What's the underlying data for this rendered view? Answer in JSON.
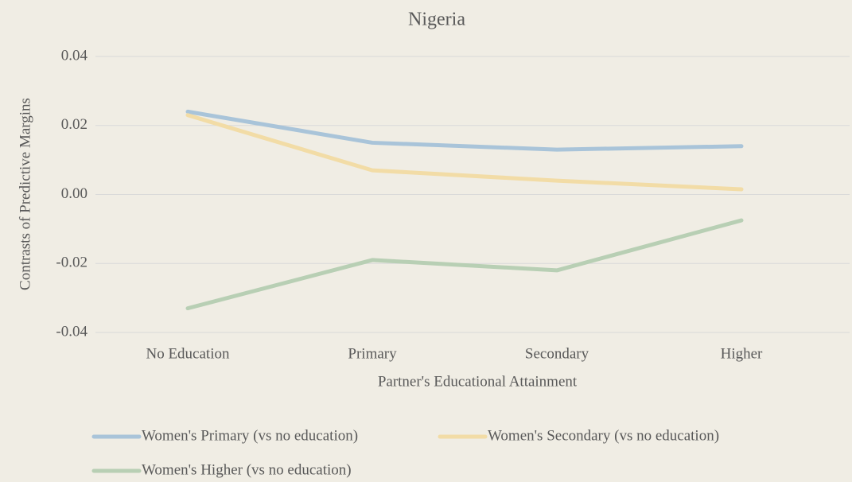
{
  "chart_data": {
    "type": "line",
    "title": "Nigeria",
    "x_label": "Partner's Educational Attainment",
    "y_label": "Contrasts of Predictive Margins",
    "categories": [
      "No Education",
      "Primary",
      "Secondary",
      "Higher"
    ],
    "series": [
      {
        "name": "Women's Primary (vs no education)",
        "color": "#a9c4d9",
        "values": [
          0.024,
          0.015,
          0.013,
          0.014
        ]
      },
      {
        "name": "Women's Secondary (vs no education)",
        "color": "#f2dca6",
        "values": [
          0.023,
          0.007,
          0.004,
          0.0015
        ]
      },
      {
        "name": "Women's Higher (vs no education)",
        "color": "#b8cfb4",
        "values": [
          -0.033,
          -0.019,
          -0.022,
          -0.0075
        ]
      }
    ],
    "ylim": [
      -0.04,
      0.04
    ],
    "yticks": [
      -0.04,
      -0.02,
      {
        "value": 0,
        "label": "0.00"
      },
      0.02,
      0.04
    ],
    "grid": true,
    "legend": "bottom"
  }
}
